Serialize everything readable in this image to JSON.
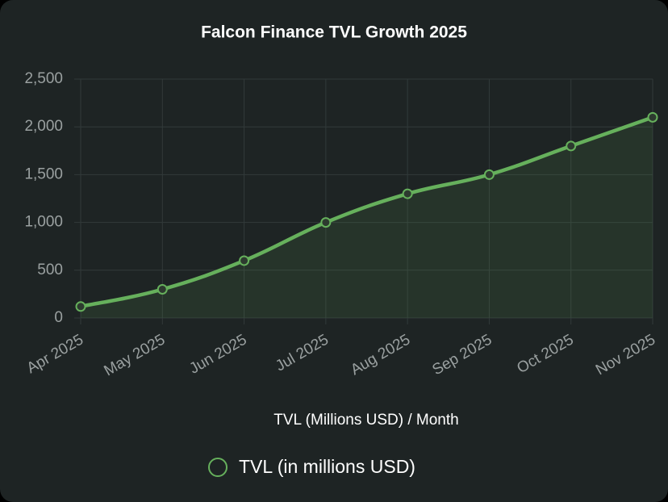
{
  "chart_data": {
    "type": "line",
    "title": "Falcon Finance TVL Growth 2025",
    "x_label": "TVL (Millions USD) / Month",
    "categories": [
      "Apr 2025",
      "May 2025",
      "Jun 2025",
      "Jul 2025",
      "Aug 2025",
      "Sep 2025",
      "Oct 2025",
      "Nov 2025"
    ],
    "series": [
      {
        "name": "TVL (in millions USD)",
        "color": "#66b05c",
        "values": [
          120,
          300,
          600,
          1000,
          1300,
          1500,
          1800,
          2100
        ]
      }
    ],
    "ylim": [
      0,
      2500
    ],
    "yticks": [
      0,
      500,
      {
        "value": 1000,
        "label": "1,000"
      },
      {
        "value": 1500,
        "label": "1,500"
      },
      {
        "value": 2000,
        "label": "2,000"
      },
      {
        "value": 2500,
        "label": "2,500"
      }
    ],
    "grid": true,
    "legend": "bottom"
  }
}
